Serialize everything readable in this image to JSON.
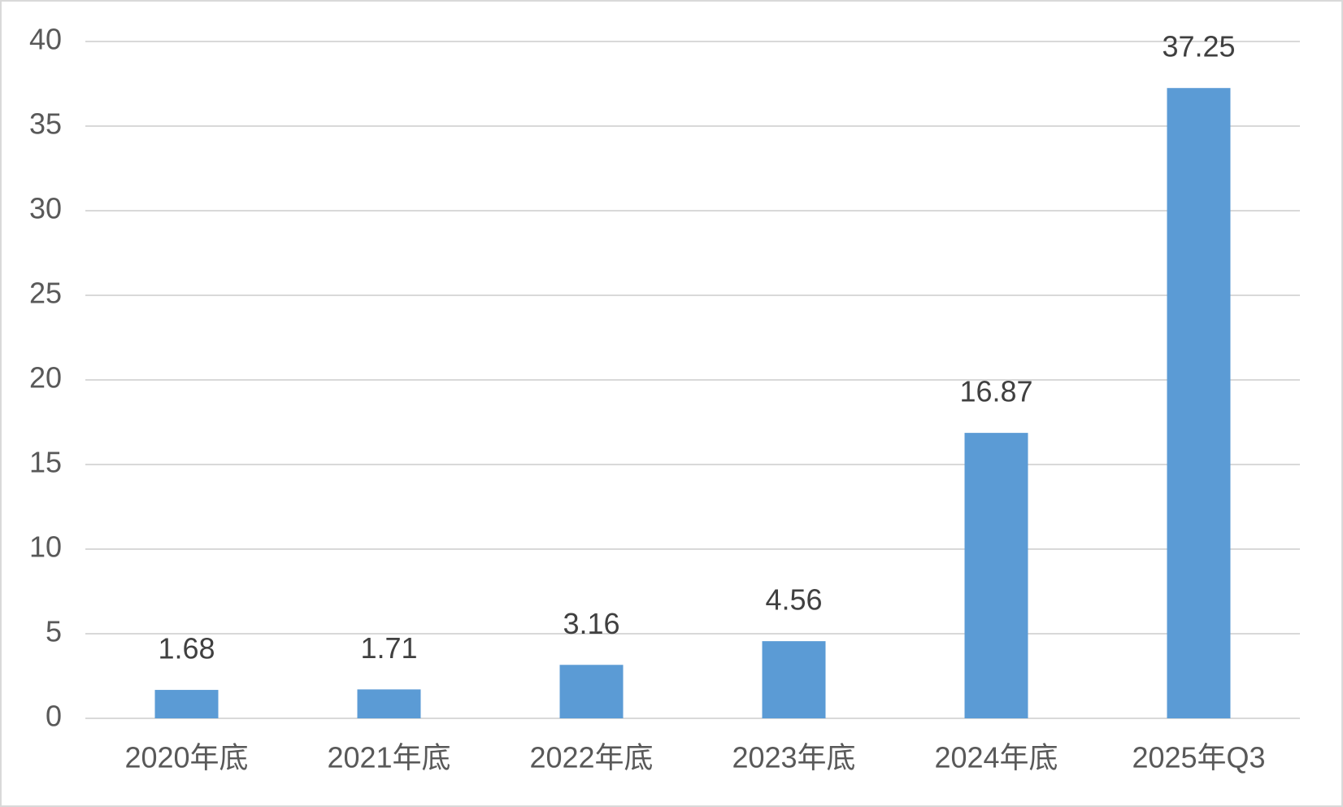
{
  "chart_data": {
    "type": "bar",
    "categories": [
      "2020年底",
      "2021年底",
      "2022年底",
      "2023年底",
      "2024年底",
      "2025年Q3"
    ],
    "values": [
      1.68,
      1.71,
      3.16,
      4.56,
      16.87,
      37.25
    ],
    "color": "#5b9bd5",
    "ylim": [
      0,
      40
    ],
    "yticks": [
      0,
      5,
      10,
      15,
      20,
      25,
      30,
      35,
      40
    ],
    "grid": true
  }
}
